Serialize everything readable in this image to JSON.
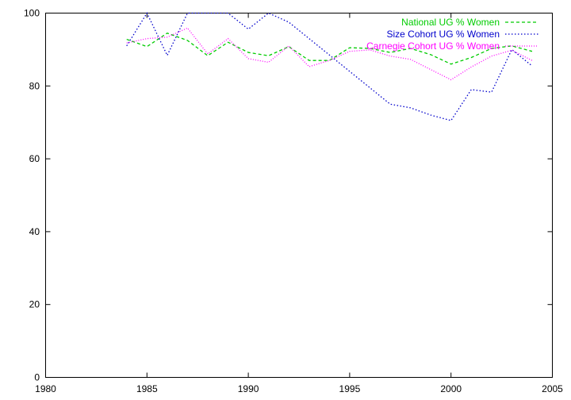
{
  "chart_data": {
    "type": "line",
    "title": "",
    "xlabel": "",
    "ylabel": "",
    "xlim": [
      1980,
      2005
    ],
    "ylim": [
      0,
      100
    ],
    "x_ticks": [
      1980,
      1985,
      1990,
      1995,
      2000,
      2005
    ],
    "y_ticks": [
      0,
      20,
      40,
      60,
      80,
      100
    ],
    "grid": false,
    "legend_position": "top-right",
    "x": [
      1984,
      1985,
      1986,
      1987,
      1988,
      1989,
      1990,
      1991,
      1992,
      1993,
      1994,
      1995,
      1996,
      1997,
      1998,
      1999,
      2000,
      2001,
      2002,
      2003,
      2004
    ],
    "series": [
      {
        "name": "National UG % Women",
        "color": "#00cc00",
        "dash": "dashed",
        "values": [
          92.8,
          90.8,
          94.5,
          92.5,
          88.3,
          92.0,
          89.2,
          88.3,
          90.8,
          87.0,
          87.0,
          90.5,
          90.3,
          89.2,
          90.3,
          88.6,
          86.0,
          87.8,
          90.3,
          91.0,
          89.5
        ]
      },
      {
        "name": "Size Cohort UG % Women",
        "color": "#0000cc",
        "dash": "dotted",
        "values": [
          91.0,
          100.0,
          88.4,
          100.0,
          100.0,
          100.0,
          95.6,
          100.0,
          97.5,
          93.0,
          88.5,
          84.0,
          79.5,
          75.0,
          74.0,
          72.0,
          70.5,
          79.0,
          78.3,
          90.0,
          85.5
        ]
      },
      {
        "name": "Carnegie Cohort UG % Women",
        "color": "#ff00ff",
        "dash": "dot-dash",
        "values": [
          91.8,
          93.0,
          93.4,
          95.9,
          88.8,
          93.0,
          87.5,
          86.5,
          91.0,
          85.3,
          87.0,
          89.5,
          89.9,
          88.2,
          87.3,
          84.5,
          81.7,
          85.2,
          88.2,
          89.8,
          87.0
        ]
      }
    ]
  }
}
